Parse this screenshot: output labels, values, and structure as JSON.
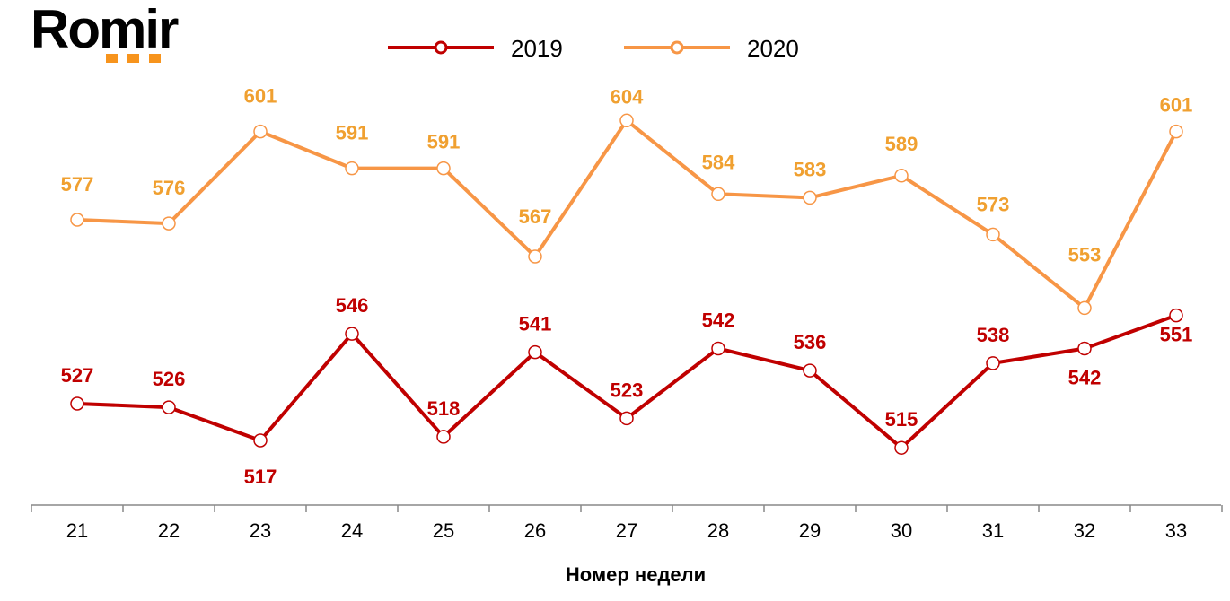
{
  "logo": {
    "text": "Romir"
  },
  "chart_data": {
    "type": "line",
    "title": "",
    "xlabel": "Номер недели",
    "ylabel": "",
    "x": [
      21,
      22,
      23,
      24,
      25,
      26,
      27,
      28,
      29,
      30,
      31,
      32,
      33
    ],
    "ylim": [
      500,
      625
    ],
    "grid": false,
    "legend_position": "top",
    "series": [
      {
        "name": "2019",
        "color": "#c00000",
        "values": [
          527,
          526,
          517,
          546,
          518,
          541,
          523,
          542,
          536,
          515,
          538,
          542,
          551
        ]
      },
      {
        "name": "2020",
        "color": "#f79646",
        "label_color": "#f0a030",
        "values": [
          577,
          576,
          601,
          591,
          591,
          567,
          604,
          584,
          583,
          589,
          573,
          553,
          601
        ]
      }
    ]
  }
}
